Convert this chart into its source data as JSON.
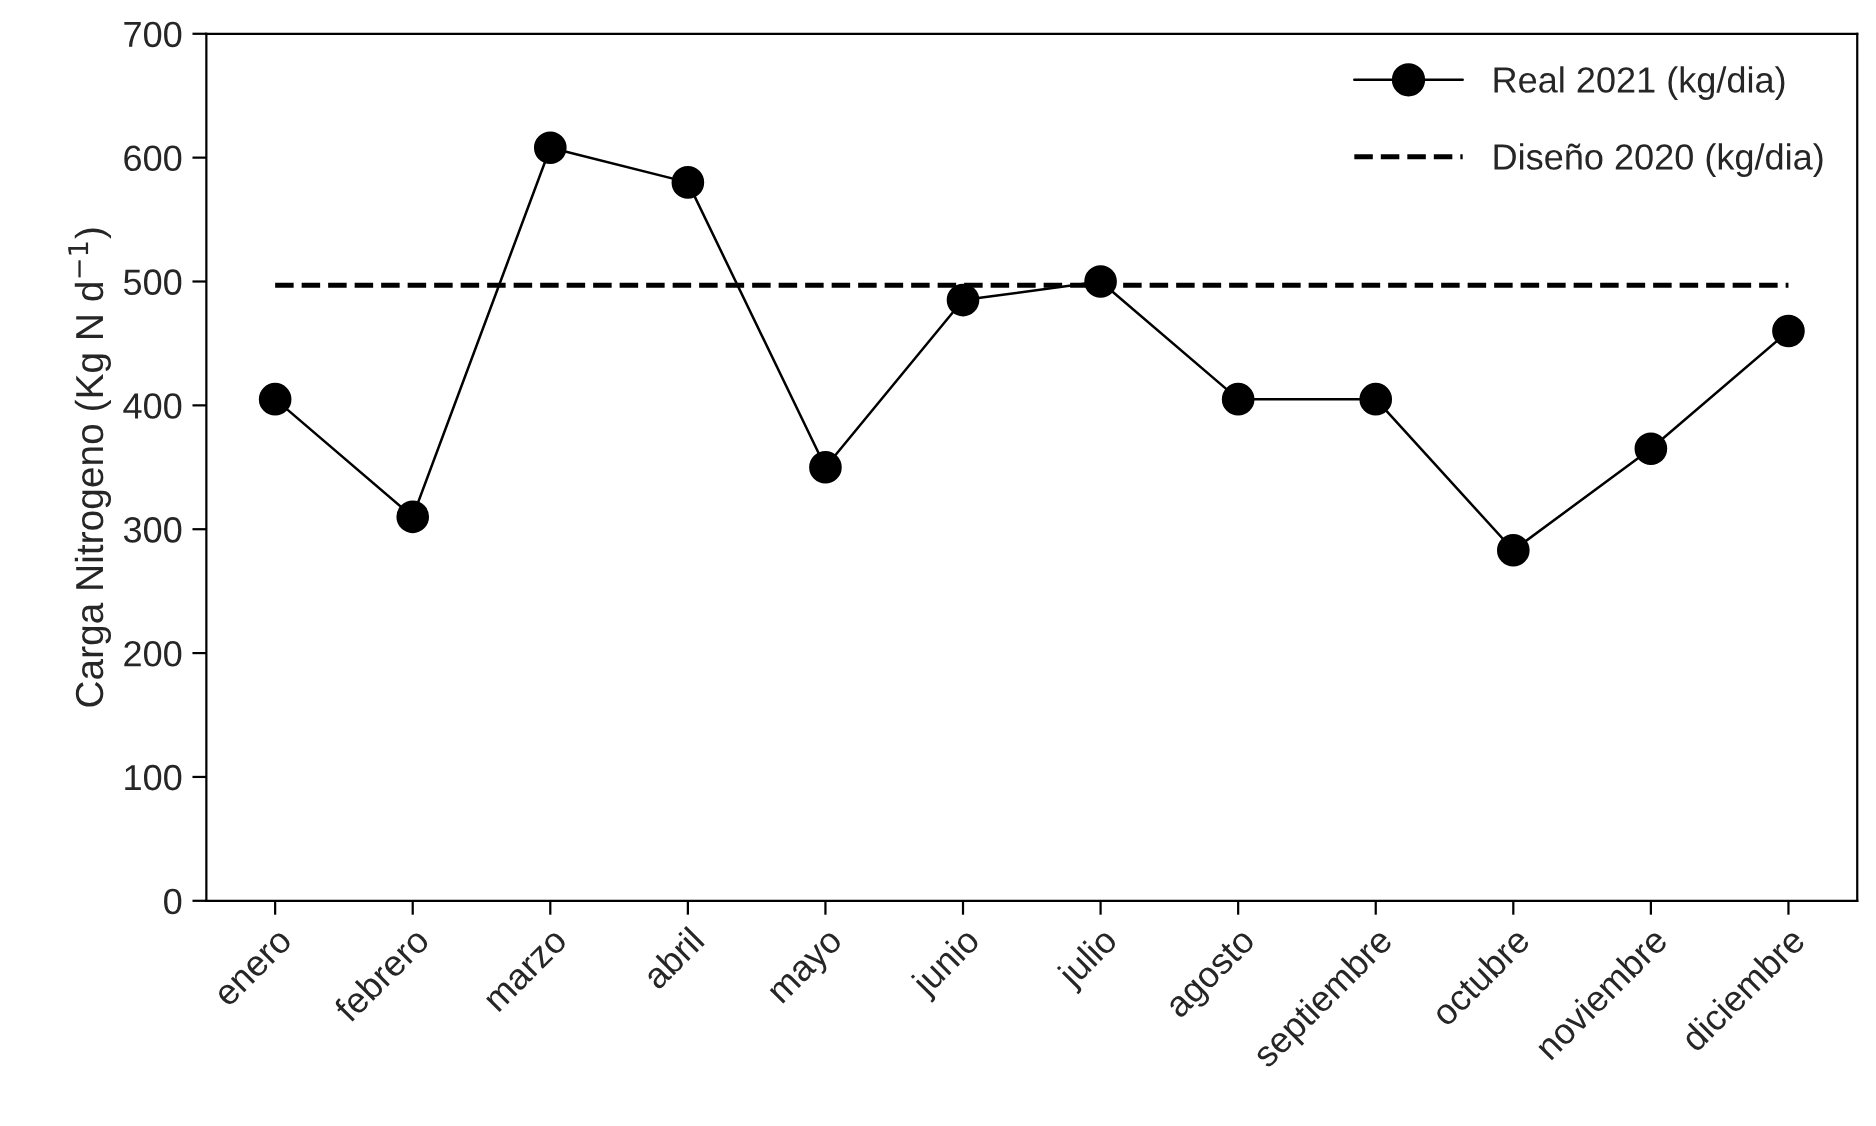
{
  "chart_data": {
    "type": "line",
    "ylabel": "Carga Nitrogeno (Kg N d$^{−1}$)",
    "categories": [
      "enero",
      "febrero",
      "marzo",
      "abril",
      "mayo",
      "junio",
      "julio",
      "agosto",
      "septiembre",
      "octubre",
      "noviembre",
      "diciembre"
    ],
    "series": [
      {
        "name": "Real 2021 (kg/dia)",
        "color": "#000000",
        "values": [
          405,
          310,
          608,
          580,
          350,
          485,
          500,
          405,
          405,
          283,
          365,
          460
        ]
      }
    ],
    "marker": "circle",
    "line_style": "solid",
    "ref_lines": [
      {
        "axis": "y",
        "value": 497,
        "label": "Diseño 2020 (kg/dia)",
        "color": "#000000",
        "line_style": "dashed"
      }
    ],
    "ylim": [
      0,
      700
    ],
    "yticks": [
      0,
      100,
      200,
      300,
      400,
      500,
      600,
      700
    ],
    "grid": false,
    "legend": "top right"
  }
}
